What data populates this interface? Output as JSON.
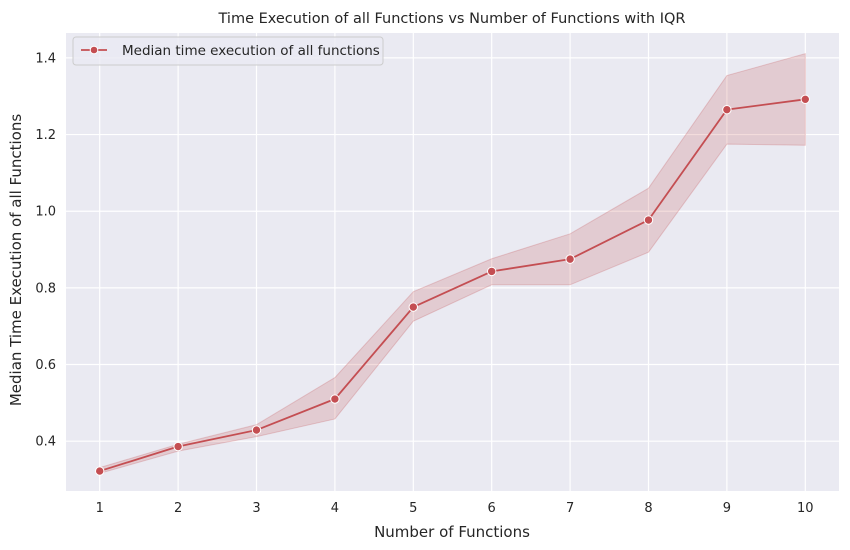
{
  "chart_data": {
    "type": "line",
    "title": "Time Execution of all Functions vs Number of Functions with IQR",
    "xlabel": "Number of Functions",
    "ylabel": "Median Time Execution of all Functions",
    "x": [
      1,
      2,
      3,
      4,
      5,
      6,
      7,
      8,
      9,
      10
    ],
    "x_ticks": [
      "1",
      "2",
      "3",
      "4",
      "5",
      "6",
      "7",
      "8",
      "9",
      "10"
    ],
    "y_ticks": [
      "0.4",
      "0.6",
      "0.8",
      "1.0",
      "1.2",
      "1.4"
    ],
    "xlim": [
      0.57,
      10.43
    ],
    "ylim": [
      0.27,
      1.465
    ],
    "grid": true,
    "legend_position": "upper-left",
    "series": [
      {
        "name": "Median time execution of all functions",
        "color": "#c44e52",
        "marker": "circle",
        "values": [
          0.322,
          0.386,
          0.429,
          0.51,
          0.75,
          0.843,
          0.875,
          0.977,
          1.265,
          1.292
        ],
        "iqr_lower": [
          0.316,
          0.374,
          0.412,
          0.458,
          0.713,
          0.808,
          0.808,
          0.893,
          1.175,
          1.172
        ],
        "iqr_upper": [
          0.331,
          0.392,
          0.443,
          0.566,
          0.79,
          0.876,
          0.941,
          1.06,
          1.354,
          1.411
        ]
      }
    ],
    "colors": {
      "plot_background": "#eaeaf2",
      "grid": "#ffffff",
      "band_fill": "#c44e52"
    }
  }
}
